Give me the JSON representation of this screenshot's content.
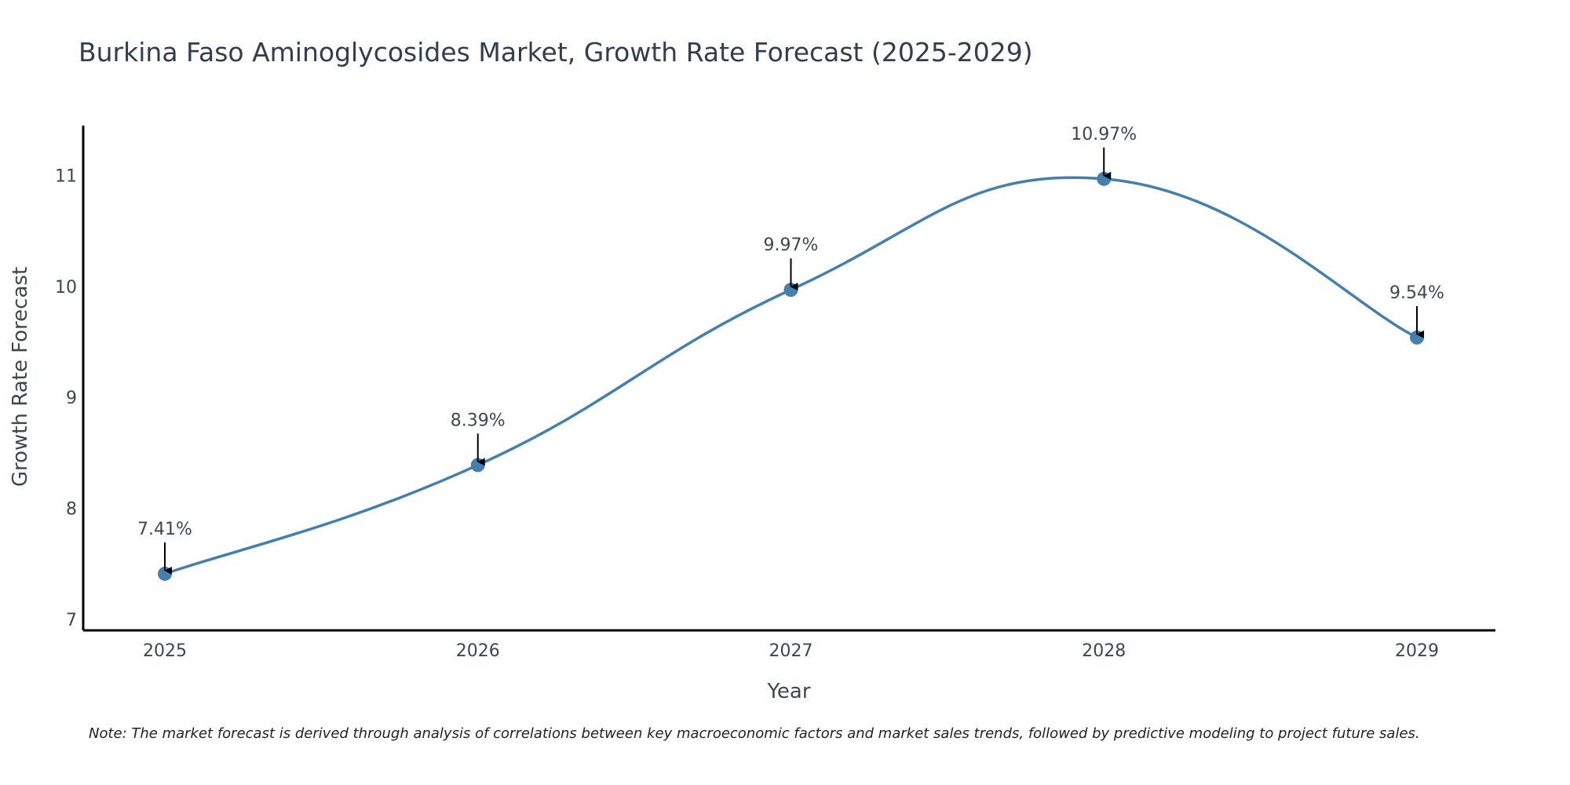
{
  "chart_data": {
    "type": "line",
    "title": "Burkina Faso Aminoglycosides Market, Growth Rate Forecast (2025-2029)",
    "xlabel": "Year",
    "ylabel": "Growth Rate Forecast",
    "categories": [
      "2025",
      "2026",
      "2027",
      "2028",
      "2029"
    ],
    "values": [
      7.41,
      8.39,
      9.97,
      10.97,
      9.54
    ],
    "data_labels": [
      "7.41%",
      "8.39%",
      "9.97%",
      "10.97%",
      "9.54%"
    ],
    "yticks": [
      7,
      8,
      9,
      10,
      11
    ],
    "ylim": [
      6.9,
      11.45
    ],
    "grid": false,
    "line_color": "#4380ad",
    "note": "Note: The market forecast is derived through analysis of correlations between key macroeconomic factors and market sales trends, followed by predictive modeling to project future sales."
  }
}
